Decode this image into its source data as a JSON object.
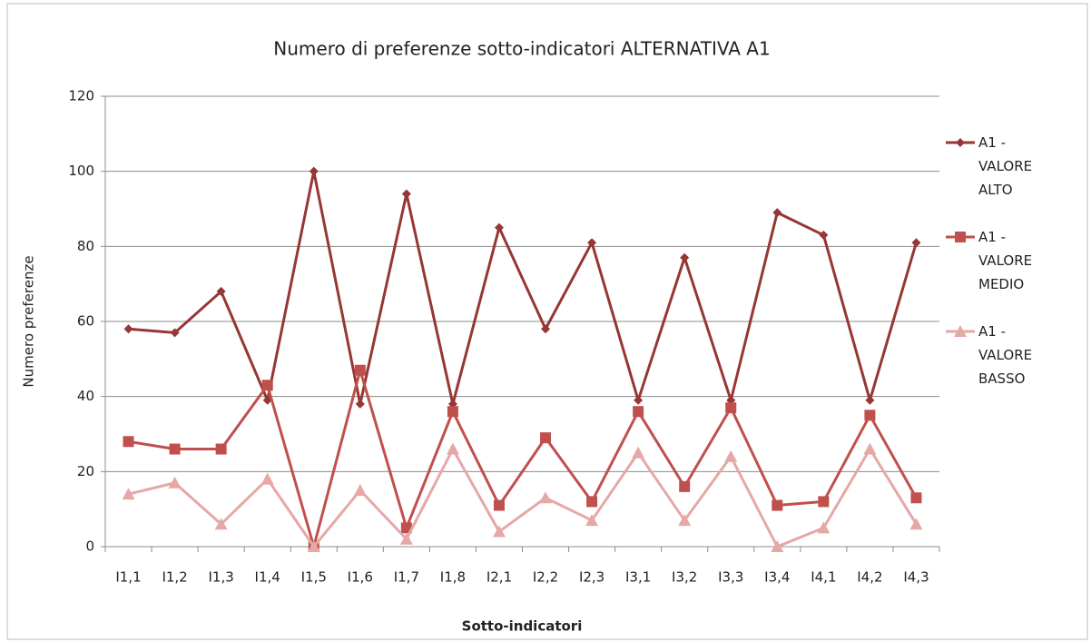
{
  "chart_data": {
    "type": "line",
    "title": "Numero di preferenze sotto-indicatori ALTERNATIVA A1",
    "xlabel": "Sotto-indicatori",
    "ylabel": "Numero preferenze",
    "categories": [
      "I1,1",
      "I1,2",
      "I1,3",
      "I1,4",
      "I1,5",
      "I1,6",
      "I1,7",
      "I1,8",
      "I2,1",
      "I2,2",
      "I2,3",
      "I3,1",
      "I3,2",
      "I3,3",
      "I3,4",
      "I4,1",
      "I4,2",
      "I4,3"
    ],
    "series": [
      {
        "name": "A1 - VALORE ALTO",
        "color": "#953735",
        "marker": "diamond",
        "values": [
          58,
          57,
          68,
          39,
          100,
          38,
          94,
          38,
          85,
          58,
          81,
          39,
          77,
          39,
          89,
          83,
          39,
          81
        ]
      },
      {
        "name": "A1 - VALORE MEDIO",
        "color": "#c0504d",
        "marker": "square",
        "values": [
          28,
          26,
          26,
          43,
          0,
          47,
          5,
          36,
          11,
          29,
          12,
          36,
          16,
          37,
          11,
          12,
          35,
          13
        ]
      },
      {
        "name": "A1 - VALORE BASSO",
        "color": "#e6a8a6",
        "marker": "triangle",
        "values": [
          14,
          17,
          6,
          18,
          0,
          15,
          2,
          26,
          4,
          13,
          7,
          25,
          7,
          24,
          0,
          5,
          26,
          6
        ]
      }
    ],
    "ylim": [
      0,
      120
    ],
    "yticks": [
      0,
      20,
      40,
      60,
      80,
      100,
      120
    ],
    "grid": true,
    "legend": "right"
  }
}
